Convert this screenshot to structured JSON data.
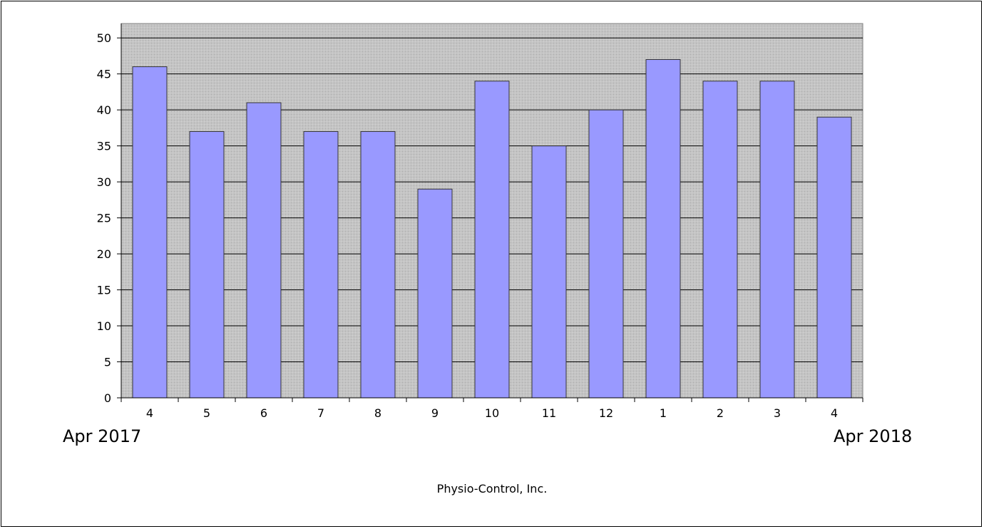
{
  "chart_data": {
    "type": "bar",
    "categories": [
      "4",
      "5",
      "6",
      "7",
      "8",
      "9",
      "10",
      "11",
      "12",
      "1",
      "2",
      "3",
      "4"
    ],
    "values": [
      46,
      37,
      41,
      37,
      37,
      29,
      44,
      35,
      40,
      47,
      44,
      44,
      39
    ],
    "ylim": [
      0,
      52
    ],
    "yticks": [
      0,
      5,
      10,
      15,
      20,
      25,
      30,
      35,
      40,
      45,
      50
    ],
    "grid": true,
    "bar_color": "#9999ff",
    "plot_background": "#c0c0c0",
    "start_label": "Apr 2017",
    "end_label": "Apr 2018"
  },
  "footer": "Physio-Control, Inc."
}
